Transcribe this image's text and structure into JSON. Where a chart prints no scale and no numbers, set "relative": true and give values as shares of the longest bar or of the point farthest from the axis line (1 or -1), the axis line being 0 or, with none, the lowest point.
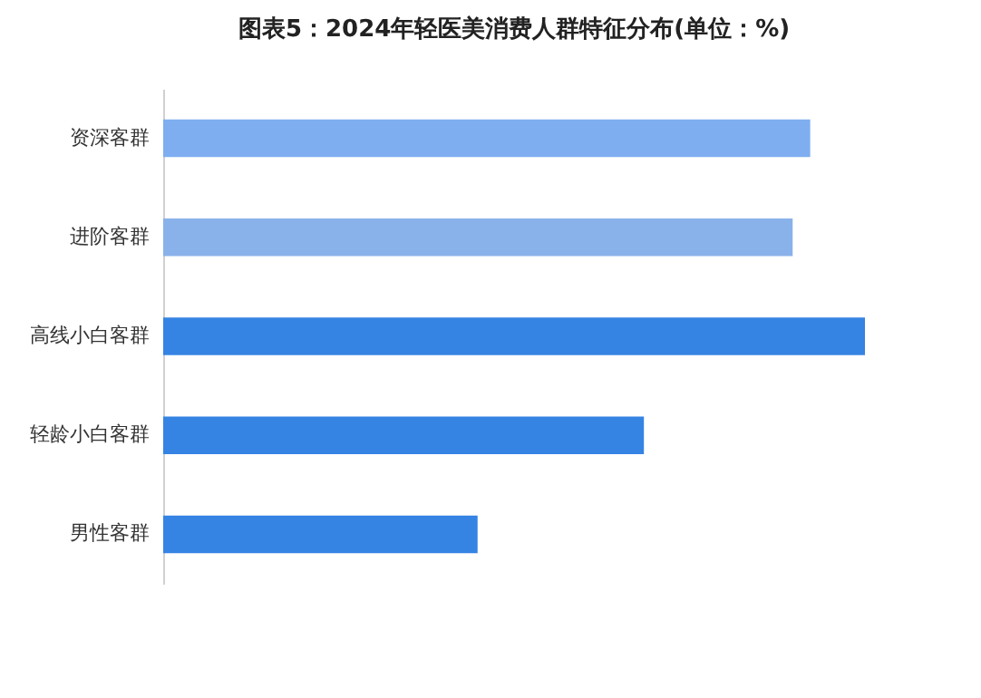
{
  "chart_data": {
    "type": "bar",
    "orientation": "horizontal",
    "relative": true,
    "title": "图表5：2024年轻医美消费人群特征分布(单位：%)",
    "categories": [
      "资深客群",
      "进阶客群",
      "高线小白客群",
      "轻龄小白客群",
      "男性客群"
    ],
    "values": [
      0.922,
      0.897,
      1,
      0.685,
      0.448
    ],
    "colors": [
      "#7eaef0",
      "#8ab2ea",
      "#3583e3",
      "#3583e3",
      "#3583e3"
    ]
  }
}
